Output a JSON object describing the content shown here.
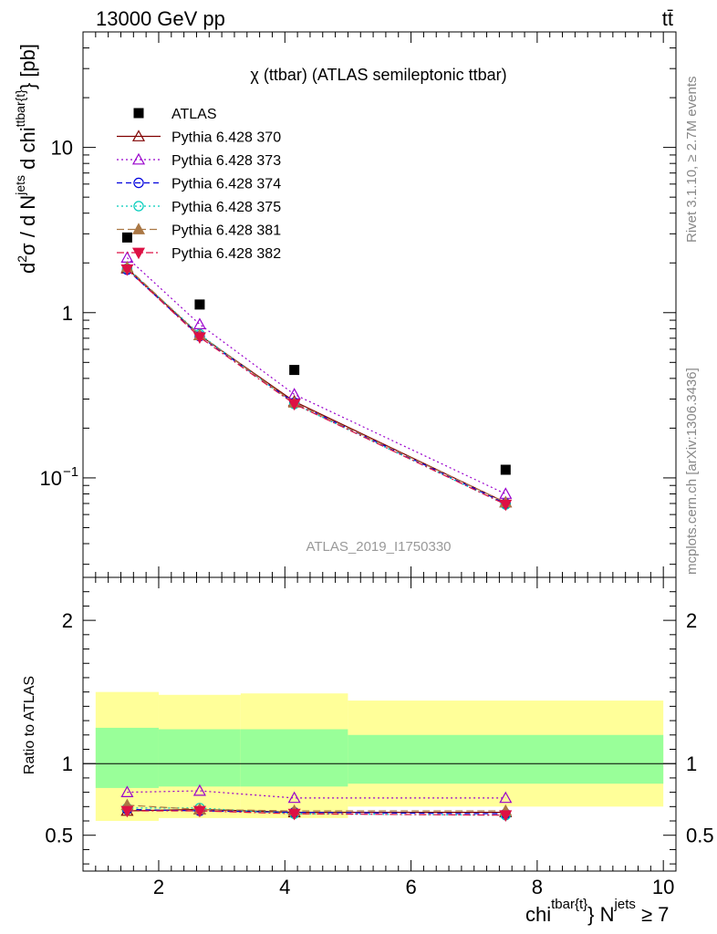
{
  "header": {
    "left": "13000 GeV pp",
    "right": "tt̄"
  },
  "side_labels": {
    "rivet": "Rivet 3.1.10, ≥ 2.7M events",
    "mcplots": "mcplots.cern.ch [arXiv:1306.3436]"
  },
  "chart_data": {
    "type": "scatter",
    "title": "χ (ttbar) (ATLAS semileptonic ttbar)",
    "analysis_label": "ATLAS_2019_I1750330",
    "ylabel": "d²σ / d N^jets d chi^ttbar{t} [pb]",
    "ylabel_parts": {
      "a": "d",
      "b": "2",
      "c": "σ / d N",
      "d": "jets",
      "e": " d chi",
      "f": "ttbar{t}",
      "g": "} [pb]"
    },
    "xlabel_parts": {
      "a": "chi",
      "b": "tbar{t}",
      "c": "} N",
      "d": "jets",
      "e": " ≥ 7"
    },
    "ratio_ylabel": "Ratio to ATLAS",
    "xlim": [
      0.8,
      10.2
    ],
    "ylim_main": [
      0.025,
      50
    ],
    "yscale_main": "log",
    "ylim_ratio": [
      0.25,
      2.3
    ],
    "x_ticks": [
      "2",
      "4",
      "6",
      "8",
      "10"
    ],
    "y_ticks_main": [
      {
        "value": 10,
        "label": "10"
      },
      {
        "value": 1,
        "label": "1"
      },
      {
        "value": 0.1,
        "label": "10",
        "sup": "−1"
      }
    ],
    "y_ticks_ratio": [
      "0.5",
      "1",
      "2"
    ],
    "x": [
      1.5,
      2.65,
      4.15,
      7.5
    ],
    "bin_edges": [
      1.0,
      2.0,
      3.3,
      5.0,
      10.0
    ],
    "data": {
      "name": "ATLAS",
      "values": [
        2.85,
        1.12,
        0.45,
        0.112
      ]
    },
    "uncertainty_bands": {
      "inner": [
        [
          0.83,
          1.25
        ],
        [
          0.84,
          1.24
        ],
        [
          0.84,
          1.24
        ],
        [
          0.86,
          1.2
        ]
      ],
      "outer": [
        [
          0.6,
          1.5
        ],
        [
          0.62,
          1.48
        ],
        [
          0.62,
          1.49
        ],
        [
          0.7,
          1.44
        ]
      ]
    },
    "series": [
      {
        "name": "Pythia 6.428 370",
        "color": "#800000",
        "dash": "",
        "marker": "triangle-up-open",
        "values": [
          1.85,
          0.73,
          0.29,
          0.071
        ],
        "ratio": [
          0.67,
          0.68,
          0.66,
          0.66
        ]
      },
      {
        "name": "Pythia 6.428 373",
        "color": "#9900cc",
        "dash": "2,3",
        "marker": "triangle-up-open",
        "values": [
          2.15,
          0.85,
          0.32,
          0.08
        ],
        "ratio": [
          0.8,
          0.81,
          0.76,
          0.76
        ]
      },
      {
        "name": "Pythia 6.428 374",
        "color": "#0000dd",
        "dash": "6,4",
        "marker": "circle-open",
        "values": [
          1.82,
          0.72,
          0.285,
          0.07
        ],
        "ratio": [
          0.68,
          0.67,
          0.66,
          0.65
        ]
      },
      {
        "name": "Pythia 6.428 375",
        "color": "#00ccbb",
        "dash": "2,3",
        "marker": "circle-open",
        "values": [
          1.85,
          0.74,
          0.28,
          0.069
        ],
        "ratio": [
          0.69,
          0.69,
          0.65,
          0.64
        ]
      },
      {
        "name": "Pythia 6.428 381",
        "color": "#aa7744",
        "dash": "8,4",
        "marker": "triangle-up-filled",
        "values": [
          1.88,
          0.73,
          0.285,
          0.071
        ],
        "ratio": [
          0.71,
          0.68,
          0.67,
          0.67
        ]
      },
      {
        "name": "Pythia 6.428 382",
        "color": "#dd1144",
        "dash": "8,3,2,3",
        "marker": "triangle-down-filled",
        "values": [
          1.83,
          0.71,
          0.28,
          0.069
        ],
        "ratio": [
          0.67,
          0.67,
          0.65,
          0.64
        ]
      }
    ]
  },
  "colors": {
    "data": "#000000",
    "inner_band": "#99ff99",
    "outer_band": "#ffff99",
    "analysis_label": "#999999"
  }
}
